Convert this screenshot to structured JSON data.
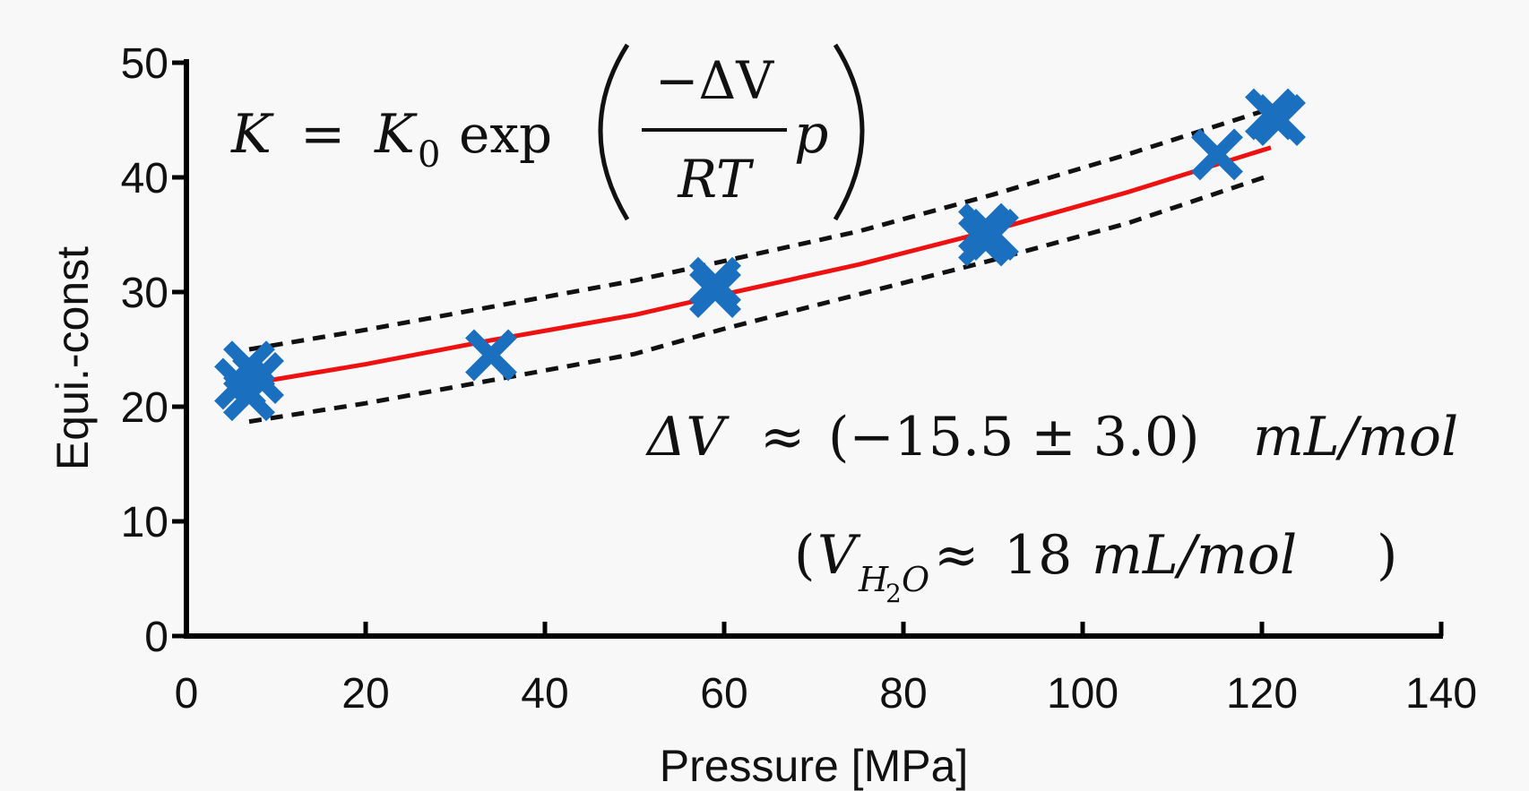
{
  "chart_data": {
    "type": "scatter",
    "xlabel": "Pressure [MPa]",
    "ylabel": "Equi.-const",
    "xlim": [
      0,
      140
    ],
    "ylim": [
      0,
      50
    ],
    "x_ticks": [
      "0",
      "20",
      "40",
      "60",
      "80",
      "100",
      "120",
      "140"
    ],
    "y_ticks": [
      "0",
      "10",
      "20",
      "30",
      "40",
      "50"
    ],
    "grid": false,
    "series": [
      {
        "kind": "markers",
        "marker": "x",
        "color": "#1a6fbf",
        "points": [
          {
            "x": 6,
            "y": 22.0
          },
          {
            "x": 7,
            "y": 23.5
          },
          {
            "x": 7,
            "y": 21.0
          },
          {
            "x": 8,
            "y": 22.5
          },
          {
            "x": 34,
            "y": 24.5
          },
          {
            "x": 59,
            "y": 30.0
          },
          {
            "x": 59,
            "y": 30.8
          },
          {
            "x": 89,
            "y": 34.5
          },
          {
            "x": 89,
            "y": 35.5
          },
          {
            "x": 90,
            "y": 35.0
          },
          {
            "x": 115,
            "y": 42.0
          },
          {
            "x": 121,
            "y": 45.5
          },
          {
            "x": 122,
            "y": 45.0
          }
        ]
      },
      {
        "kind": "fit",
        "color": "#ee1111",
        "x": [
          7,
          20,
          34,
          50,
          60,
          75,
          90,
          105,
          121
        ],
        "y": [
          22.0,
          23.7,
          25.8,
          28.0,
          29.8,
          32.4,
          35.4,
          38.7,
          42.6
        ]
      },
      {
        "kind": "bound-upper",
        "color": "#111111",
        "x": [
          7,
          20,
          34,
          50,
          60,
          75,
          90,
          105,
          121
        ],
        "y": [
          25.0,
          26.7,
          28.7,
          31.0,
          32.7,
          35.3,
          38.5,
          42.0,
          46.0
        ]
      },
      {
        "kind": "bound-lower",
        "color": "#111111",
        "x": [
          7,
          20,
          34,
          50,
          60,
          75,
          90,
          105,
          121
        ],
        "y": [
          18.7,
          20.3,
          22.3,
          24.6,
          26.8,
          29.8,
          32.8,
          36.0,
          40.2
        ]
      }
    ],
    "annotations": {
      "formula": {
        "lhs": "K",
        "eq": "=",
        "k0": "K",
        "k0_sub": "0",
        "fn": "exp",
        "numerator": "−ΔV",
        "denominator": "RT",
        "var": "p"
      },
      "delta_v": {
        "lhs": "ΔV",
        "approx": "≈",
        "value": "(−15.5 ± 3.0)",
        "unit": "mL/mol"
      },
      "water": {
        "open": "(",
        "v": "V",
        "sub_h": "H",
        "sub_2": "2",
        "sub_o": "O",
        "approx": "≈",
        "value": "18",
        "unit": "mL/mol",
        "close": ")"
      }
    }
  }
}
